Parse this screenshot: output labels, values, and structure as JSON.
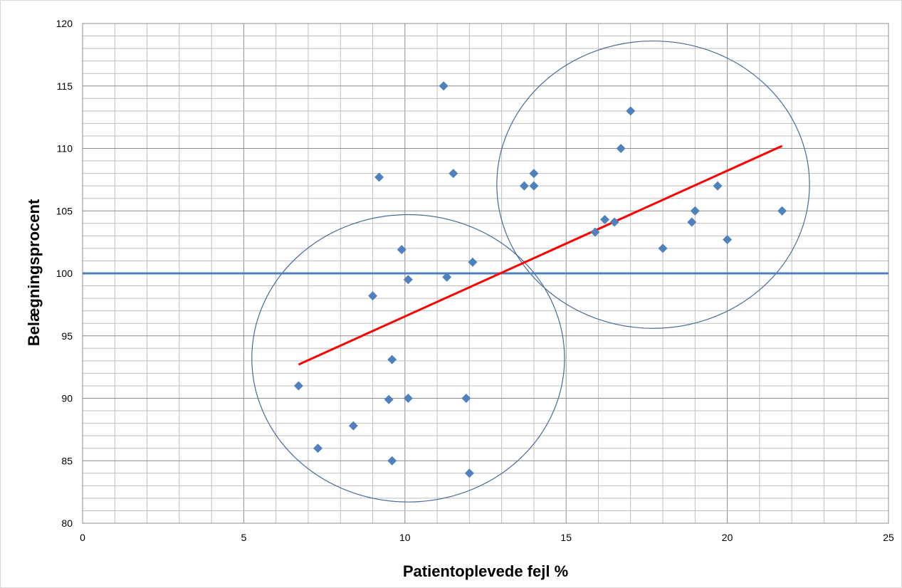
{
  "chart_data": {
    "type": "scatter",
    "title": "",
    "xlabel": "Patientoplevede fejl %",
    "ylabel": "Belægningsprocent",
    "xlim": [
      0,
      25
    ],
    "ylim": [
      80,
      120
    ],
    "x_ticks": [
      0,
      5,
      10,
      15,
      20,
      25
    ],
    "y_ticks": [
      80,
      85,
      90,
      95,
      100,
      105,
      110,
      115,
      120
    ],
    "x_minor_step": 1,
    "y_minor_step": 1,
    "grid": true,
    "legend": "none",
    "marker": "diamond",
    "colors": {
      "points": "#4f81bd",
      "reference_line": "#4f81bd",
      "trend_line": "#ff0000",
      "circles": "#4a6a9a"
    },
    "series": [
      {
        "points": [
          [
            6.7,
            91
          ],
          [
            7.3,
            86
          ],
          [
            8.4,
            87.8
          ],
          [
            9.0,
            98.2
          ],
          [
            9.2,
            107.7
          ],
          [
            9.5,
            89.9
          ],
          [
            9.6,
            93.1
          ],
          [
            9.6,
            85
          ],
          [
            9.9,
            101.9
          ],
          [
            10.1,
            99.5
          ],
          [
            10.1,
            90
          ],
          [
            11.2,
            115
          ],
          [
            11.3,
            99.7
          ],
          [
            11.5,
            108
          ],
          [
            11.9,
            90
          ],
          [
            12.0,
            84
          ],
          [
            12.1,
            100.9
          ],
          [
            13.7,
            107
          ],
          [
            14.0,
            108
          ],
          [
            14.0,
            107
          ],
          [
            15.9,
            103.3
          ],
          [
            16.2,
            104.3
          ],
          [
            16.5,
            104.1
          ],
          [
            16.7,
            110
          ],
          [
            17.0,
            113
          ],
          [
            18.0,
            102
          ],
          [
            18.9,
            104.1
          ],
          [
            19.0,
            105
          ],
          [
            19.7,
            107
          ],
          [
            20.0,
            102.7
          ],
          [
            21.7,
            105
          ]
        ]
      }
    ],
    "reference_line": {
      "y": 100
    },
    "trend_line": {
      "from": [
        6.7,
        92.7
      ],
      "to": [
        21.7,
        110.2
      ]
    },
    "circles": [
      {
        "cx": 10.1,
        "cy": 93.2,
        "rx": 4.85,
        "ry": 11.5
      },
      {
        "cx": 17.7,
        "cy": 107.1,
        "rx": 4.85,
        "ry": 11.5
      }
    ]
  }
}
